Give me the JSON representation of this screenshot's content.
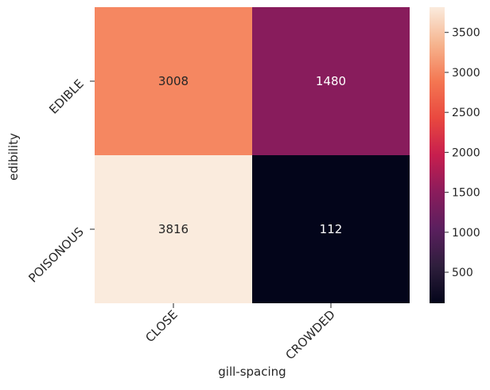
{
  "chart_data": {
    "type": "heatmap",
    "xlabel": "gill-spacing",
    "ylabel": "edibility",
    "x_categories": [
      "CLOSE",
      "CROWDED"
    ],
    "y_categories": [
      "EDIBLE",
      "POISONOUS"
    ],
    "values": [
      [
        3008,
        1480
      ],
      [
        3816,
        112
      ]
    ],
    "colorbar": {
      "ticks": [
        500,
        1000,
        1500,
        2000,
        2500,
        3000,
        3500
      ],
      "range": [
        112,
        3816
      ],
      "colormap": "rocket"
    }
  }
}
